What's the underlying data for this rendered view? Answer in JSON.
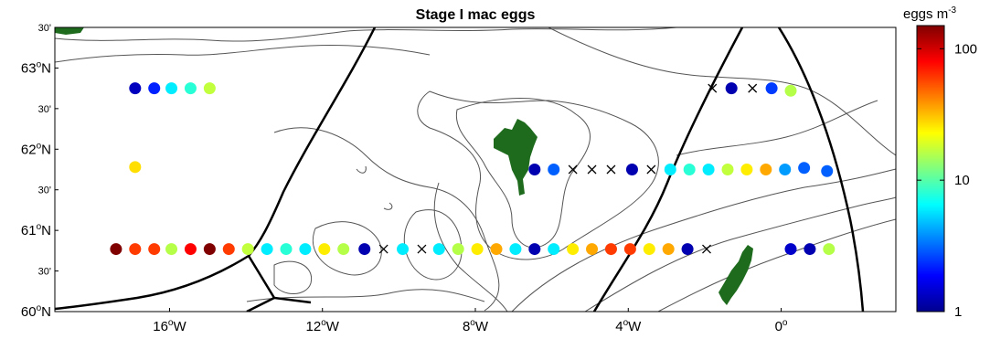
{
  "title": "Stage I mac eggs",
  "colorbar": {
    "label": "eggs m",
    "label_superscript": "-3",
    "scale": "log",
    "range": [
      1,
      150
    ],
    "ticks": [
      {
        "label": "100",
        "value": 100
      },
      {
        "label": "10",
        "value": 10
      },
      {
        "label": "1",
        "value": 1
      }
    ]
  },
  "axes": {
    "lon_range": [
      -19.0,
      3.0
    ],
    "lat_range": [
      60.0,
      63.5
    ],
    "x_ticks": [
      {
        "lon": -16,
        "deg": "16",
        "suffix": "W"
      },
      {
        "lon": -12,
        "deg": "12",
        "suffix": "W"
      },
      {
        "lon": -8,
        "deg": "8",
        "suffix": "W"
      },
      {
        "lon": -4,
        "deg": "4",
        "suffix": "W"
      },
      {
        "lon": 0,
        "deg": "0",
        "suffix": ""
      }
    ],
    "y_ticks": [
      {
        "lat": 63.5,
        "label": "30'",
        "type": "min"
      },
      {
        "lat": 63.0,
        "deg": "63",
        "suffix": "N",
        "type": "deg"
      },
      {
        "lat": 62.5,
        "label": "30'",
        "type": "min"
      },
      {
        "lat": 62.0,
        "deg": "62",
        "suffix": "N",
        "type": "deg"
      },
      {
        "lat": 61.5,
        "label": "30'",
        "type": "min"
      },
      {
        "lat": 61.0,
        "deg": "61",
        "suffix": "N",
        "type": "deg"
      },
      {
        "lat": 60.5,
        "label": "30'",
        "type": "min"
      },
      {
        "lat": 60.0,
        "deg": "60",
        "suffix": "N",
        "type": "deg"
      }
    ]
  },
  "colors": {
    "land": "#1e6b1e",
    "contour": "#555555",
    "boundary": "#000000"
  },
  "chart_data": {
    "type": "scatter",
    "title": "Stage I mac eggs",
    "x_unit": "degrees longitude",
    "y_unit": "degrees latitude",
    "stations": [
      {
        "lon": -16.9,
        "lat": 62.75,
        "eggs": 1.3
      },
      {
        "lon": -16.4,
        "lat": 62.75,
        "eggs": 2.2
      },
      {
        "lon": -15.95,
        "lat": 62.75,
        "eggs": 6
      },
      {
        "lon": -15.45,
        "lat": 62.75,
        "eggs": 8
      },
      {
        "lon": -14.95,
        "lat": 62.75,
        "eggs": 17
      },
      {
        "lon": -16.9,
        "lat": 61.78,
        "eggs": 27
      },
      {
        "lon": -17.4,
        "lat": 60.77,
        "eggs": 160
      },
      {
        "lon": -16.9,
        "lat": 60.77,
        "eggs": 60
      },
      {
        "lon": -16.4,
        "lat": 60.77,
        "eggs": 60
      },
      {
        "lon": -15.95,
        "lat": 60.77,
        "eggs": 16
      },
      {
        "lon": -15.45,
        "lat": 60.77,
        "eggs": 80
      },
      {
        "lon": -14.95,
        "lat": 60.77,
        "eggs": 150
      },
      {
        "lon": -14.45,
        "lat": 60.77,
        "eggs": 60
      },
      {
        "lon": -13.95,
        "lat": 60.77,
        "eggs": 17
      },
      {
        "lon": -13.45,
        "lat": 60.77,
        "eggs": 6
      },
      {
        "lon": -12.95,
        "lat": 60.77,
        "eggs": 8
      },
      {
        "lon": -12.45,
        "lat": 60.77,
        "eggs": 6
      },
      {
        "lon": -11.95,
        "lat": 60.77,
        "eggs": 25
      },
      {
        "lon": -11.45,
        "lat": 60.77,
        "eggs": 16
      },
      {
        "lon": -10.9,
        "lat": 60.77,
        "eggs": 1.2
      },
      {
        "lon": -10.4,
        "lat": 60.77,
        "eggs": 0
      },
      {
        "lon": -9.9,
        "lat": 60.77,
        "eggs": 6
      },
      {
        "lon": -9.4,
        "lat": 60.77,
        "eggs": 0
      },
      {
        "lon": -8.95,
        "lat": 60.77,
        "eggs": 6
      },
      {
        "lon": -8.45,
        "lat": 60.77,
        "eggs": 16
      },
      {
        "lon": -7.95,
        "lat": 60.77,
        "eggs": 25
      },
      {
        "lon": -7.45,
        "lat": 60.77,
        "eggs": 35
      },
      {
        "lon": -6.95,
        "lat": 60.77,
        "eggs": 6
      },
      {
        "lon": -6.45,
        "lat": 60.77,
        "eggs": 1.2
      },
      {
        "lon": -5.95,
        "lat": 60.77,
        "eggs": 6
      },
      {
        "lon": -5.45,
        "lat": 60.77,
        "eggs": 25
      },
      {
        "lon": -4.95,
        "lat": 60.77,
        "eggs": 35
      },
      {
        "lon": -4.45,
        "lat": 60.77,
        "eggs": 60
      },
      {
        "lon": -3.95,
        "lat": 60.77,
        "eggs": 60
      },
      {
        "lon": -3.45,
        "lat": 60.77,
        "eggs": 25
      },
      {
        "lon": -2.95,
        "lat": 60.77,
        "eggs": 35
      },
      {
        "lon": -2.45,
        "lat": 60.77,
        "eggs": 1.2
      },
      {
        "lon": -1.95,
        "lat": 60.77,
        "eggs": 0
      },
      {
        "lon": 0.25,
        "lat": 60.77,
        "eggs": 1.4
      },
      {
        "lon": 0.75,
        "lat": 60.77,
        "eggs": 1.2
      },
      {
        "lon": 1.25,
        "lat": 60.77,
        "eggs": 16
      },
      {
        "lon": -6.45,
        "lat": 61.75,
        "eggs": 1.2
      },
      {
        "lon": -5.95,
        "lat": 61.75,
        "eggs": 3
      },
      {
        "lon": -5.45,
        "lat": 61.75,
        "eggs": 0
      },
      {
        "lon": -4.95,
        "lat": 61.75,
        "eggs": 0
      },
      {
        "lon": -4.45,
        "lat": 61.75,
        "eggs": 0
      },
      {
        "lon": -3.9,
        "lat": 61.75,
        "eggs": 1.2
      },
      {
        "lon": -3.4,
        "lat": 61.75,
        "eggs": 0
      },
      {
        "lon": -2.9,
        "lat": 61.75,
        "eggs": 6
      },
      {
        "lon": -2.4,
        "lat": 61.75,
        "eggs": 8
      },
      {
        "lon": -1.9,
        "lat": 61.75,
        "eggs": 6
      },
      {
        "lon": -1.4,
        "lat": 61.75,
        "eggs": 17
      },
      {
        "lon": -0.9,
        "lat": 61.75,
        "eggs": 25
      },
      {
        "lon": -0.4,
        "lat": 61.75,
        "eggs": 35
      },
      {
        "lon": 0.1,
        "lat": 61.75,
        "eggs": 4
      },
      {
        "lon": 0.6,
        "lat": 61.77,
        "eggs": 3
      },
      {
        "lon": 1.2,
        "lat": 61.73,
        "eggs": 3
      },
      {
        "lon": -1.8,
        "lat": 62.75,
        "eggs": 0
      },
      {
        "lon": -1.3,
        "lat": 62.75,
        "eggs": 1.2
      },
      {
        "lon": -0.75,
        "lat": 62.75,
        "eggs": 0
      },
      {
        "lon": -0.25,
        "lat": 62.75,
        "eggs": 2.5
      },
      {
        "lon": 0.25,
        "lat": 62.72,
        "eggs": 16
      }
    ]
  }
}
